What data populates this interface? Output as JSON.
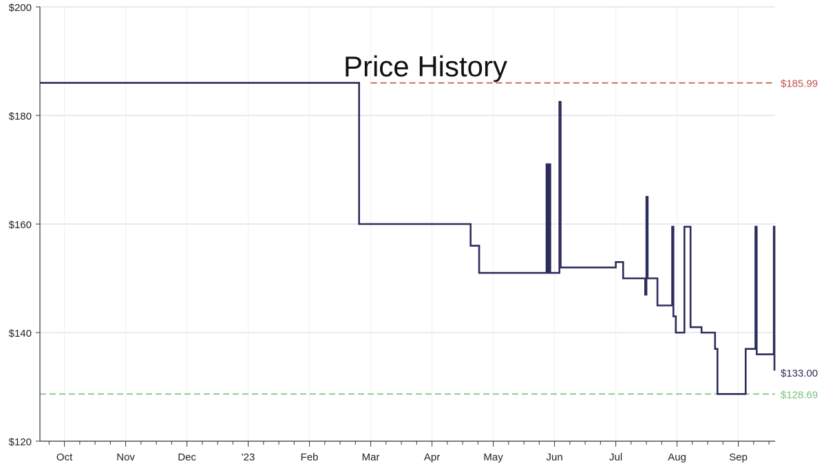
{
  "chart_data": {
    "type": "line",
    "title": "Price History",
    "xlabel": "",
    "ylabel": "",
    "x_tick_labels": [
      "Oct",
      "Nov",
      "Dec",
      "'23",
      "Feb",
      "Mar",
      "Apr",
      "May",
      "Jun",
      "Jul",
      "Aug",
      "Sep"
    ],
    "x_tick_values": [
      1.0,
      2.0,
      3.0,
      4.0,
      5.0,
      6.0,
      7.0,
      8.0,
      9.0,
      10.0,
      11.0,
      12.0
    ],
    "x_unit": "months since Sep 2022",
    "xlim": [
      0.6,
      12.6
    ],
    "ylim": [
      120,
      200
    ],
    "y_ticks": [
      120,
      140,
      160,
      180,
      200
    ],
    "y_tick_labels": [
      "$120",
      "$140",
      "$160",
      "$180",
      "$200"
    ],
    "grid": true,
    "reference_lines": [
      {
        "value": 185.99,
        "label": "$185.99",
        "color": "#c0504d",
        "x_start": 6.0
      },
      {
        "value": 128.69,
        "label": "$128.69",
        "color": "#77c177",
        "x_start": 0.6
      }
    ],
    "current_price_label": "$133.00",
    "series": [
      {
        "name": "",
        "color": "#2b2d5c",
        "step_points": [
          [
            0.6,
            186
          ],
          [
            5.81,
            186
          ],
          [
            5.81,
            160
          ],
          [
            7.63,
            160
          ],
          [
            7.63,
            156
          ],
          [
            7.77,
            156
          ],
          [
            7.77,
            151
          ],
          [
            8.87,
            151
          ],
          [
            8.87,
            171
          ],
          [
            8.89,
            171
          ],
          [
            8.89,
            151
          ],
          [
            8.91,
            151
          ],
          [
            8.91,
            171
          ],
          [
            8.93,
            171
          ],
          [
            8.93,
            151
          ],
          [
            9.08,
            151
          ],
          [
            9.08,
            182.5
          ],
          [
            9.1,
            182.5
          ],
          [
            9.1,
            152
          ],
          [
            9.48,
            152
          ],
          [
            9.48,
            152
          ],
          [
            10.0,
            152
          ],
          [
            10.0,
            153
          ],
          [
            10.12,
            153
          ],
          [
            10.12,
            150
          ],
          [
            10.48,
            150
          ],
          [
            10.48,
            147
          ],
          [
            10.5,
            147
          ],
          [
            10.5,
            165
          ],
          [
            10.52,
            165
          ],
          [
            10.52,
            150
          ],
          [
            10.68,
            150
          ],
          [
            10.68,
            145
          ],
          [
            10.92,
            145
          ],
          [
            10.92,
            159.5
          ],
          [
            10.94,
            159.5
          ],
          [
            10.94,
            143
          ],
          [
            10.98,
            143
          ],
          [
            10.98,
            140
          ],
          [
            11.12,
            140
          ],
          [
            11.12,
            159.5
          ],
          [
            11.22,
            159.5
          ],
          [
            11.22,
            141
          ],
          [
            11.4,
            141
          ],
          [
            11.4,
            140
          ],
          [
            11.62,
            140
          ],
          [
            11.62,
            137
          ],
          [
            11.66,
            137
          ],
          [
            11.66,
            128.69
          ],
          [
            12.12,
            128.69
          ],
          [
            12.12,
            137
          ],
          [
            12.28,
            137
          ],
          [
            12.28,
            159.5
          ],
          [
            12.3,
            159.5
          ],
          [
            12.3,
            136
          ],
          [
            12.58,
            136
          ],
          [
            12.58,
            159.5
          ],
          [
            12.59,
            159.5
          ],
          [
            12.59,
            133
          ]
        ]
      }
    ]
  }
}
